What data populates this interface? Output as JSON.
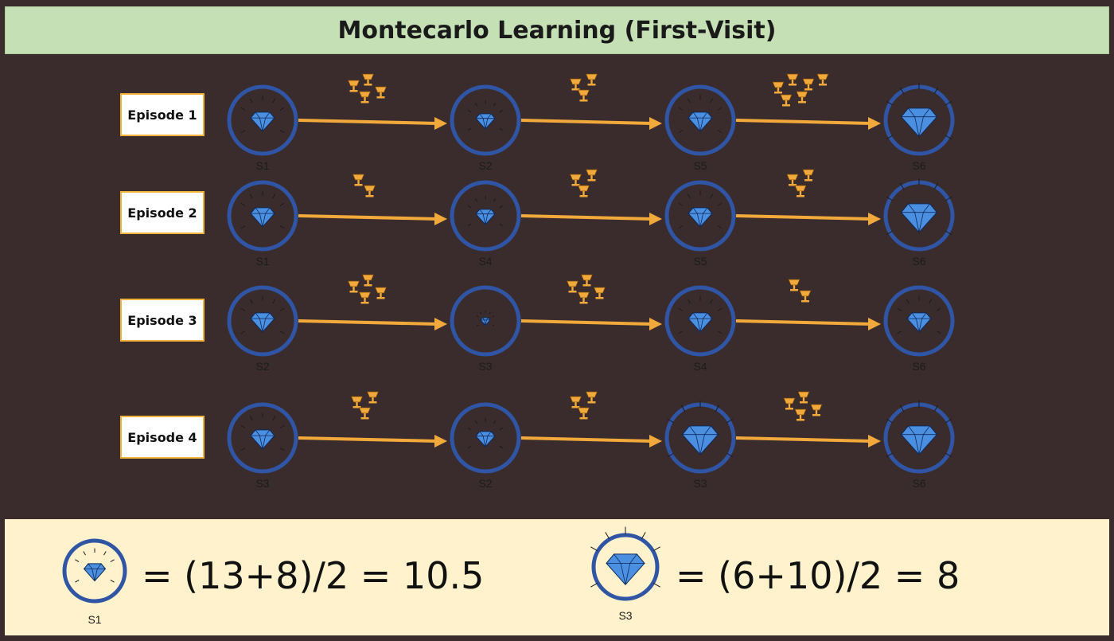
{
  "title": "Montecarlo Learning (First-Visit)",
  "colors": {
    "background": "#3a2c2c",
    "title_bg": "#c5e0b4",
    "circle": "#2f55a4",
    "arrow": "#f2a93b",
    "trophy": "#f2a93b",
    "diamond": "#4a8fe0",
    "summary_bg": "#fff2cc"
  },
  "episodes": [
    {
      "label": "Episode 1",
      "states": [
        "S1",
        "S2",
        "S5",
        "S6"
      ],
      "rewards": [
        4,
        3,
        6
      ]
    },
    {
      "label": "Episode 2",
      "states": [
        "S1",
        "S4",
        "S5",
        "S6"
      ],
      "rewards": [
        2,
        3,
        3
      ]
    },
    {
      "label": "Episode 3",
      "states": [
        "S2",
        "S3",
        "S4",
        "S6"
      ],
      "rewards": [
        4,
        4,
        2
      ]
    },
    {
      "label": "Episode 4",
      "states": [
        "S3",
        "S2",
        "S3",
        "S6"
      ],
      "rewards": [
        3,
        3,
        4
      ]
    }
  ],
  "summary": [
    {
      "state": "S1",
      "formula": "= (13+8)/2 = 10.5"
    },
    {
      "state": "S3",
      "formula": "= (6+10)/2 = 8"
    }
  ]
}
